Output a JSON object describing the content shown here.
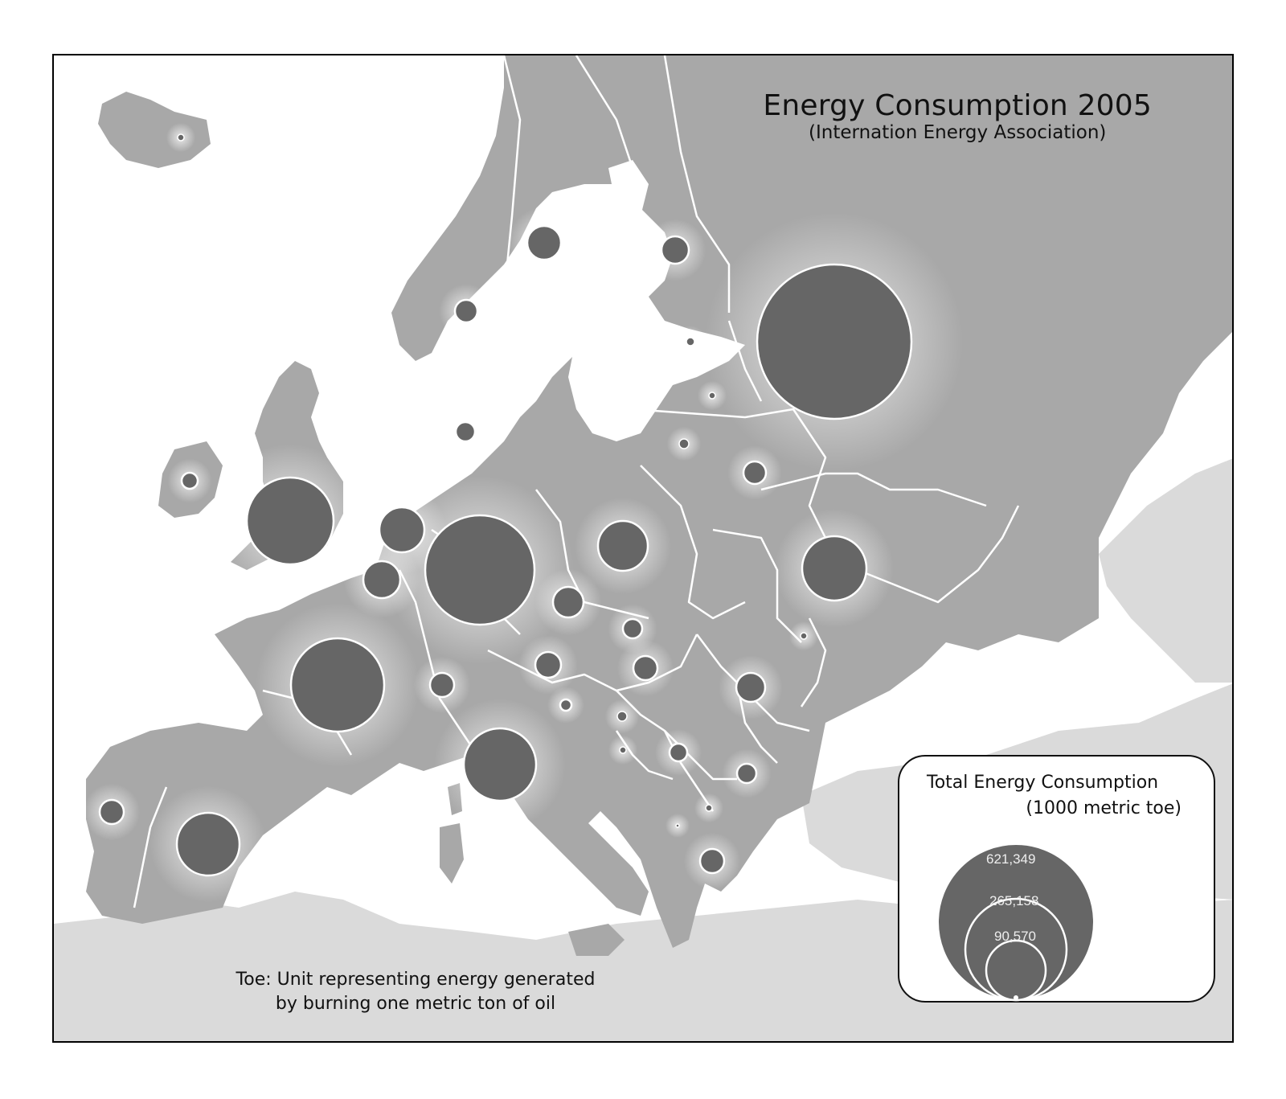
{
  "title": "Energy Consumption 2005",
  "subtitle": "(Internation Energy Association)",
  "footnote": {
    "line1": "Toe: Unit representing energy generated",
    "line2": "by burning one metric ton of oil"
  },
  "legend": {
    "title_line1": "Total Energy Consumption",
    "title_line2": "(1000 metric toe)",
    "values": [
      "621,349",
      "265,158",
      "90,570"
    ]
  },
  "colors": {
    "sea": "#ffffff",
    "land": "#a8a8a8",
    "land_other": "#dadada",
    "bubble": "#666666",
    "border": "#ffffff"
  }
}
